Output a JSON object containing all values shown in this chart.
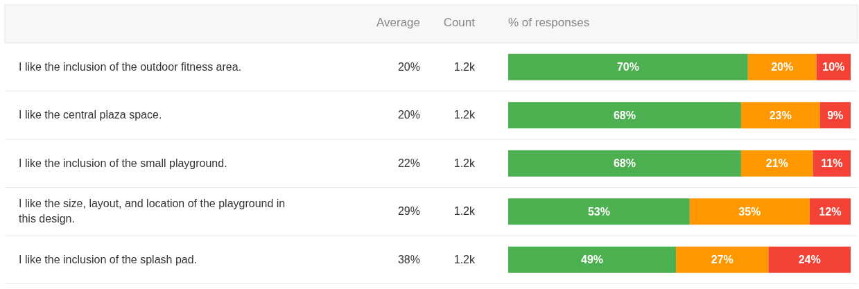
{
  "chart_data": {
    "type": "bar",
    "orientation": "horizontal",
    "stacked": true,
    "xlabel": "% of responses",
    "categories": [
      "I like the inclusion of the outdoor fitness area.",
      "I like the central plaza space.",
      "I like the inclusion of the small playground.",
      "I like the size, layout, and location of the playground in this design.",
      "I like the inclusion of the splash pad."
    ],
    "series": [
      {
        "color": "#4caf50",
        "values": [
          70,
          68,
          68,
          53,
          49
        ],
        "value_labels": [
          "70%",
          "68%",
          "68%",
          "53%",
          "49%"
        ]
      },
      {
        "color": "#ff9800",
        "values": [
          20,
          23,
          21,
          35,
          27
        ],
        "value_labels": [
          "20%",
          "23%",
          "21%",
          "35%",
          "27%"
        ]
      },
      {
        "color": "#f44336",
        "values": [
          10,
          9,
          11,
          12,
          24
        ],
        "value_labels": [
          "10%",
          "9%",
          "11%",
          "12%",
          "24%"
        ]
      }
    ],
    "xlim": [
      0,
      100
    ],
    "tick_labels": "y",
    "annotations": [
      "Average",
      "Count",
      "20%",
      "1.2k",
      "20%",
      "1.2k",
      "22%",
      "1.2k",
      "29%",
      "1.2k",
      "38%",
      "1.2k"
    ]
  }
}
